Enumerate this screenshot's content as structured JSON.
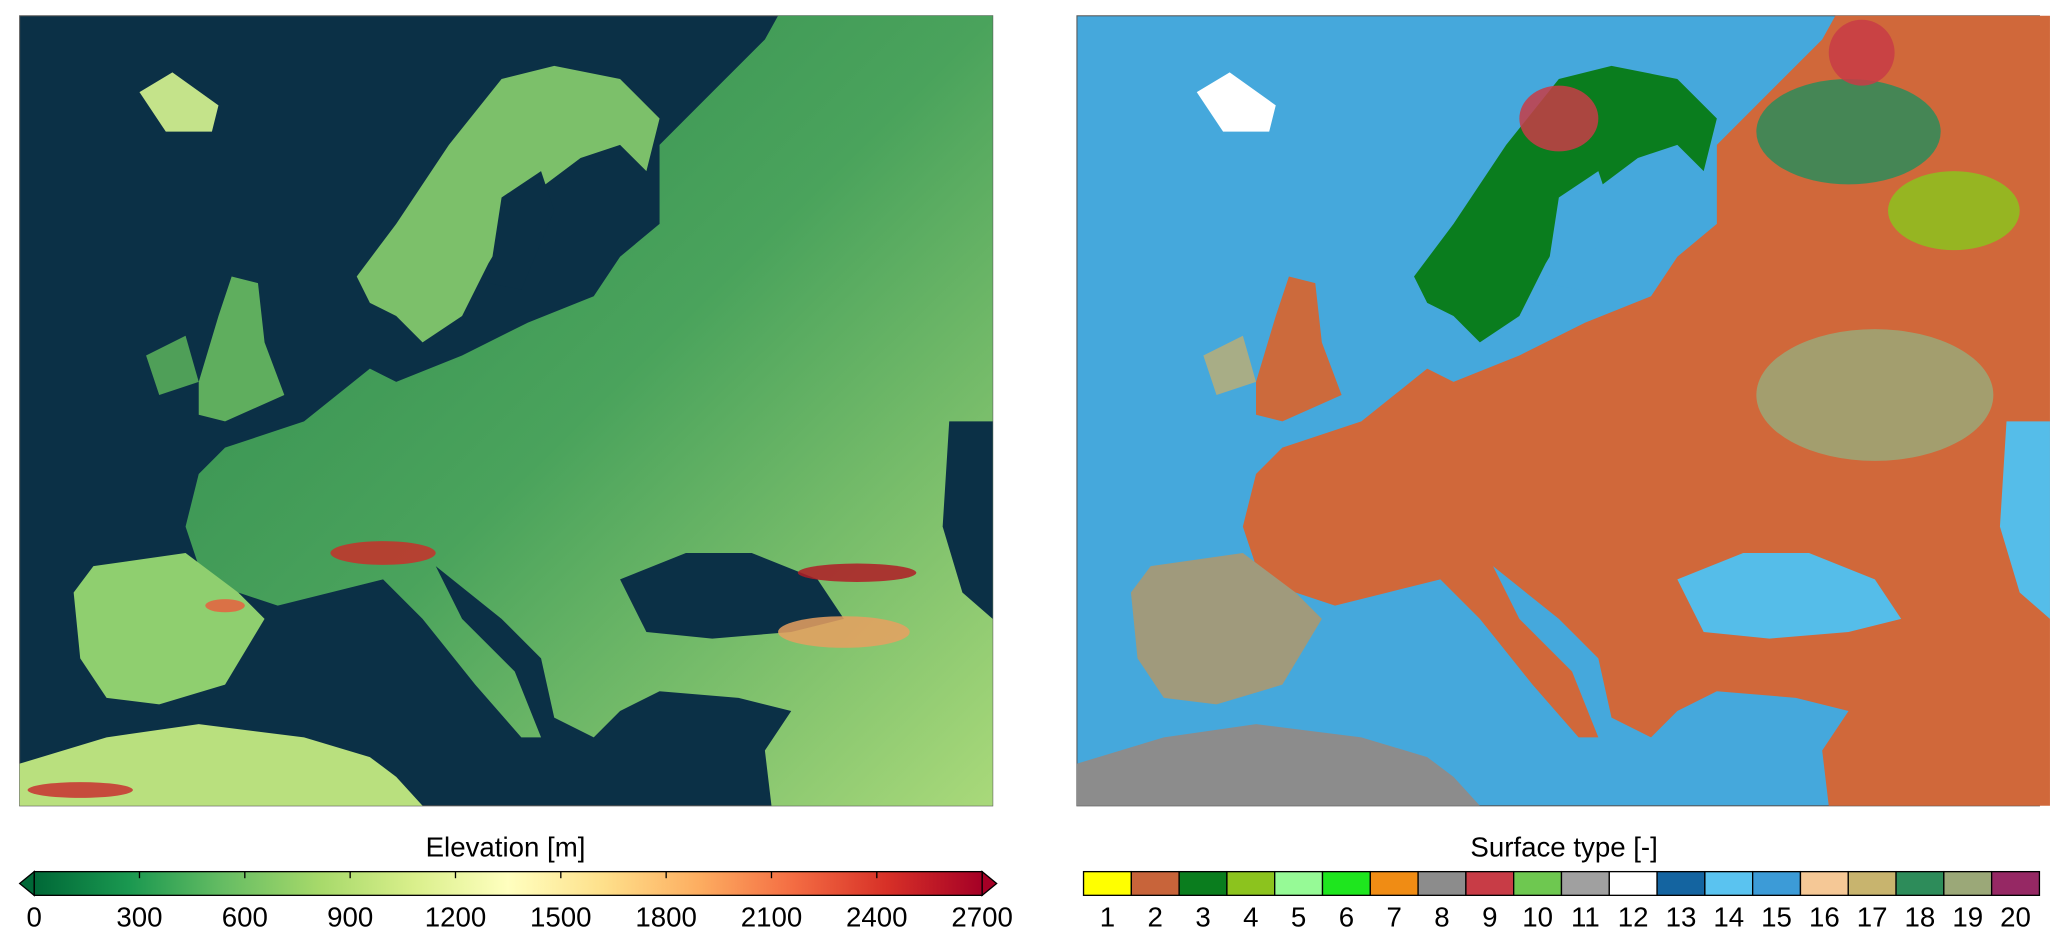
{
  "panels": [
    {
      "colorbar": {
        "label": "Elevation [m]",
        "ticks": [
          0,
          300,
          600,
          900,
          1200,
          1500,
          1800,
          2100,
          2400,
          2700
        ],
        "range": [
          0,
          2700
        ],
        "colormap": [
          "#006837",
          "#1a9850",
          "#66bd63",
          "#a6d96a",
          "#d9ef8b",
          "#ffffbf",
          "#fee08b",
          "#fdae61",
          "#f46d43",
          "#d73027",
          "#a50026"
        ]
      }
    },
    {
      "colorbar": {
        "label": "Surface type [-]",
        "classes": [
          1,
          2,
          3,
          4,
          5,
          6,
          7,
          8,
          9,
          10,
          11,
          12,
          13,
          14,
          15,
          16,
          17,
          18,
          19,
          20
        ],
        "colors": [
          "#ffff00",
          "#c8643a",
          "#0a7d1e",
          "#8cc31e",
          "#96fa96",
          "#1ee61e",
          "#f08c14",
          "#8c8c8c",
          "#c83c46",
          "#6ec850",
          "#a0a0a0",
          "#ffffff",
          "#1464a0",
          "#5ac3f0",
          "#3c9bd7",
          "#f5c896",
          "#c8b46e",
          "#2d8c5a",
          "#9ba878",
          "#962864"
        ]
      }
    }
  ]
}
